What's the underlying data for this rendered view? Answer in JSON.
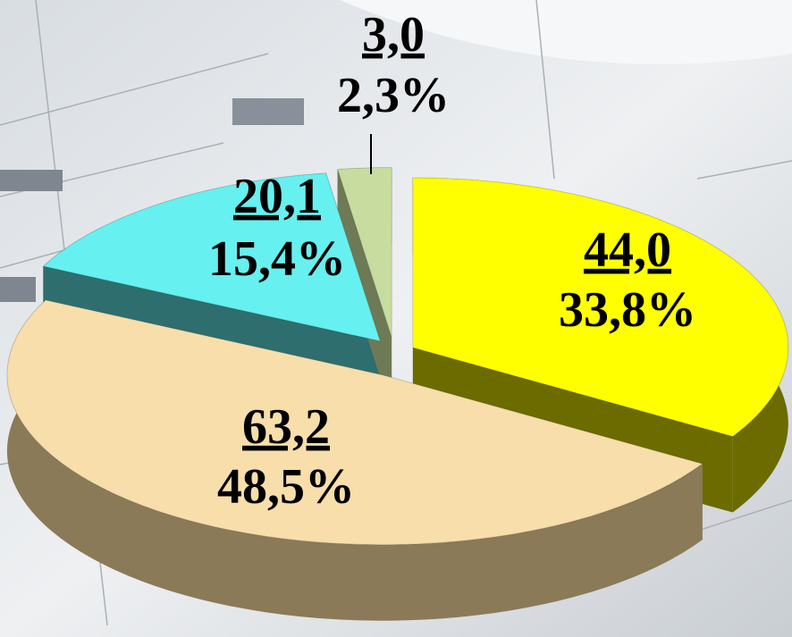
{
  "chart_data": {
    "type": "pie",
    "categories": [
      null,
      null,
      null,
      null
    ],
    "values": [
      44.0,
      63.2,
      20.1,
      3.0
    ],
    "value_labels": [
      "44,0",
      "63,2",
      "20,1",
      "3,0"
    ],
    "percentages": [
      33.8,
      48.5,
      15.4,
      2.3
    ],
    "percentage_labels": [
      "33,8%",
      "48,5%",
      "15,4%",
      "2,3%"
    ],
    "colors": [
      "#ffff00",
      "#f7deaa",
      "#66f0ef",
      "#c8dca0"
    ],
    "side_colors": [
      "#6b6b00",
      "#8a7a58",
      "#2e6e6e",
      "#6e7a55"
    ]
  }
}
